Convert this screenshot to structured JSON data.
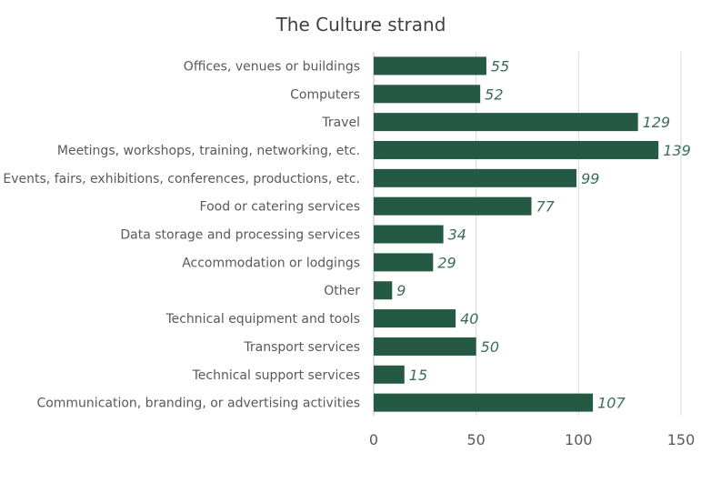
{
  "chart_data": {
    "type": "bar",
    "orientation": "horizontal",
    "title": "The Culture strand",
    "categories": [
      "Offices, venues or buildings",
      "Computers",
      "Travel",
      "Meetings, workshops, training, networking, etc.",
      "Events, fairs, exhibitions, conferences, productions, etc.",
      "Food or catering services",
      "Data storage and processing services",
      "Accommodation or lodgings",
      "Other",
      "Technical equipment and tools",
      "Transport services",
      "Technical support services",
      "Communication, branding, or advertising activities"
    ],
    "values": [
      55,
      52,
      129,
      139,
      99,
      77,
      34,
      29,
      9,
      40,
      50,
      15,
      107
    ],
    "xlim": [
      0,
      150
    ],
    "xticks": [
      0,
      50,
      100,
      150
    ],
    "grid": true,
    "data_labels": true,
    "bar_color": "#245a44",
    "label_color": "#3a6e59"
  }
}
